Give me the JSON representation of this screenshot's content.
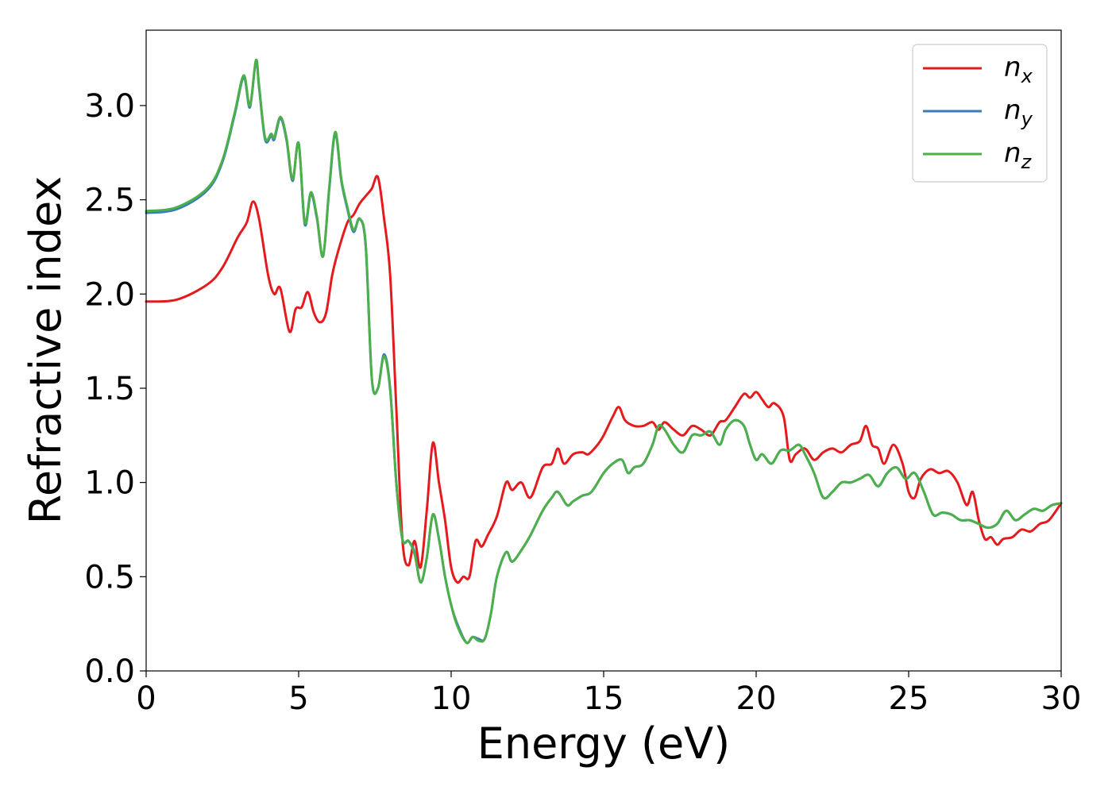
{
  "chart_data": {
    "type": "line",
    "xlabel": "Energy (eV)",
    "ylabel": "Refractive index",
    "xlim": [
      0,
      30
    ],
    "ylim": [
      0,
      3.4
    ],
    "xticks": [
      0,
      5,
      10,
      15,
      20,
      25,
      30
    ],
    "xtick_labels": [
      "0",
      "5",
      "10",
      "15",
      "20",
      "25",
      "30"
    ],
    "yticks": [
      0.0,
      0.5,
      1.0,
      1.5,
      2.0,
      2.5,
      3.0
    ],
    "ytick_labels": [
      "0.0",
      "0.5",
      "1.0",
      "1.5",
      "2.0",
      "2.5",
      "3.0"
    ],
    "grid": false,
    "legend_position": "top-right",
    "series": [
      {
        "name": "n_x",
        "label_base": "n",
        "label_sub": "x",
        "color": "#e41a1c",
        "x": [
          0,
          1,
          2,
          2.5,
          3.0,
          3.3,
          3.5,
          3.7,
          4.0,
          4.2,
          4.4,
          4.7,
          4.9,
          5.1,
          5.3,
          5.5,
          5.7,
          5.9,
          6.1,
          6.3,
          6.6,
          6.8,
          7.0,
          7.2,
          7.4,
          7.6,
          7.8,
          8.0,
          8.2,
          8.4,
          8.6,
          8.8,
          9.0,
          9.2,
          9.4,
          9.6,
          9.8,
          10.0,
          10.2,
          10.4,
          10.6,
          10.8,
          11.0,
          11.2,
          11.5,
          11.8,
          12.0,
          12.3,
          12.6,
          13.0,
          13.3,
          13.5,
          13.7,
          14.0,
          14.3,
          14.5,
          14.8,
          15.0,
          15.3,
          15.5,
          15.7,
          16.0,
          16.3,
          16.6,
          16.8,
          17.0,
          17.3,
          17.6,
          17.9,
          18.2,
          18.5,
          18.8,
          19.0,
          19.3,
          19.6,
          19.8,
          20.0,
          20.2,
          20.4,
          20.6,
          20.9,
          21.1,
          21.3,
          21.6,
          21.9,
          22.2,
          22.5,
          22.8,
          23.1,
          23.4,
          23.6,
          23.8,
          24.0,
          24.2,
          24.5,
          24.8,
          25.0,
          25.2,
          25.4,
          25.7,
          26.0,
          26.3,
          26.6,
          26.9,
          27.1,
          27.3,
          27.5,
          27.7,
          27.9,
          28.1,
          28.4,
          28.7,
          29.0,
          29.3,
          29.6,
          30.0
        ],
        "y": [
          1.96,
          1.97,
          2.05,
          2.14,
          2.3,
          2.38,
          2.49,
          2.4,
          2.1,
          2.0,
          2.03,
          1.8,
          1.92,
          1.93,
          2.01,
          1.9,
          1.85,
          1.9,
          2.1,
          2.23,
          2.38,
          2.42,
          2.48,
          2.52,
          2.56,
          2.62,
          2.4,
          2.1,
          1.4,
          0.7,
          0.56,
          0.69,
          0.55,
          0.85,
          1.21,
          1.0,
          0.8,
          0.55,
          0.47,
          0.5,
          0.5,
          0.69,
          0.66,
          0.72,
          0.82,
          1.0,
          0.96,
          1.0,
          0.92,
          1.08,
          1.1,
          1.18,
          1.1,
          1.15,
          1.16,
          1.15,
          1.2,
          1.25,
          1.35,
          1.4,
          1.33,
          1.3,
          1.3,
          1.32,
          1.28,
          1.32,
          1.28,
          1.25,
          1.3,
          1.28,
          1.25,
          1.32,
          1.33,
          1.4,
          1.47,
          1.45,
          1.48,
          1.44,
          1.4,
          1.42,
          1.35,
          1.12,
          1.15,
          1.18,
          1.12,
          1.16,
          1.18,
          1.16,
          1.2,
          1.22,
          1.3,
          1.2,
          1.18,
          1.1,
          1.2,
          1.1,
          0.95,
          0.92,
          1.02,
          1.07,
          1.05,
          1.06,
          1.0,
          0.88,
          0.95,
          0.8,
          0.7,
          0.71,
          0.67,
          0.7,
          0.71,
          0.75,
          0.74,
          0.78,
          0.8,
          0.89
        ]
      },
      {
        "name": "n_y",
        "label_base": "n",
        "label_sub": "y",
        "color": "#377eb8",
        "x": [
          0,
          1,
          2,
          2.5,
          2.9,
          3.2,
          3.4,
          3.6,
          3.7,
          3.9,
          4.1,
          4.2,
          4.4,
          4.6,
          4.8,
          5.0,
          5.2,
          5.4,
          5.6,
          5.8,
          6.0,
          6.2,
          6.4,
          6.6,
          6.8,
          7.0,
          7.2,
          7.4,
          7.6,
          7.8,
          8.0,
          8.2,
          8.4,
          8.6,
          8.8,
          9.0,
          9.2,
          9.4,
          9.6,
          9.8,
          10.0,
          10.2,
          10.5,
          10.7,
          10.9,
          11.1,
          11.3,
          11.5,
          11.8,
          12.0,
          12.3,
          12.6,
          13.0,
          13.3,
          13.5,
          13.8,
          14.0,
          14.3,
          14.6,
          15.0,
          15.3,
          15.6,
          15.8,
          16.0,
          16.3,
          16.6,
          16.8,
          17.0,
          17.3,
          17.6,
          17.9,
          18.2,
          18.5,
          18.8,
          19.0,
          19.3,
          19.6,
          19.8,
          20.0,
          20.2,
          20.5,
          20.8,
          21.1,
          21.4,
          21.6,
          21.9,
          22.2,
          22.5,
          22.8,
          23.1,
          23.4,
          23.7,
          24.0,
          24.3,
          24.6,
          24.9,
          25.2,
          25.5,
          25.8,
          26.1,
          26.4,
          26.7,
          27.0,
          27.3,
          27.6,
          27.9,
          28.2,
          28.5,
          28.8,
          29.1,
          29.4,
          29.7,
          30.0
        ],
        "y": [
          2.43,
          2.45,
          2.55,
          2.7,
          2.95,
          3.15,
          2.99,
          3.24,
          3.1,
          2.82,
          2.84,
          2.82,
          2.93,
          2.82,
          2.6,
          2.8,
          2.37,
          2.53,
          2.4,
          2.2,
          2.55,
          2.85,
          2.6,
          2.45,
          2.33,
          2.4,
          2.25,
          1.55,
          1.5,
          1.68,
          1.5,
          1.0,
          0.7,
          0.69,
          0.63,
          0.47,
          0.6,
          0.83,
          0.7,
          0.5,
          0.35,
          0.25,
          0.15,
          0.18,
          0.17,
          0.17,
          0.3,
          0.5,
          0.63,
          0.58,
          0.64,
          0.72,
          0.85,
          0.92,
          0.95,
          0.88,
          0.9,
          0.93,
          0.95,
          1.05,
          1.1,
          1.12,
          1.05,
          1.08,
          1.1,
          1.2,
          1.3,
          1.28,
          1.2,
          1.16,
          1.25,
          1.25,
          1.27,
          1.2,
          1.28,
          1.33,
          1.3,
          1.2,
          1.12,
          1.15,
          1.1,
          1.17,
          1.17,
          1.2,
          1.15,
          1.05,
          0.92,
          0.95,
          1.0,
          1.0,
          1.02,
          1.04,
          0.98,
          1.05,
          1.08,
          1.02,
          1.05,
          0.95,
          0.83,
          0.84,
          0.83,
          0.8,
          0.8,
          0.78,
          0.76,
          0.78,
          0.85,
          0.8,
          0.83,
          0.86,
          0.85,
          0.88,
          0.89
        ]
      },
      {
        "name": "n_z",
        "label_base": "n",
        "label_sub": "z",
        "color": "#4daf4a",
        "x": [
          0,
          1,
          2,
          2.5,
          2.9,
          3.2,
          3.4,
          3.6,
          3.7,
          3.9,
          4.1,
          4.2,
          4.4,
          4.6,
          4.8,
          5.0,
          5.2,
          5.4,
          5.6,
          5.8,
          6.0,
          6.2,
          6.4,
          6.6,
          6.8,
          7.0,
          7.2,
          7.4,
          7.6,
          7.8,
          8.0,
          8.2,
          8.4,
          8.6,
          8.8,
          9.0,
          9.2,
          9.4,
          9.6,
          9.8,
          10.0,
          10.2,
          10.5,
          10.7,
          10.9,
          11.1,
          11.3,
          11.5,
          11.8,
          12.0,
          12.3,
          12.6,
          13.0,
          13.3,
          13.5,
          13.8,
          14.0,
          14.3,
          14.6,
          15.0,
          15.3,
          15.6,
          15.8,
          16.0,
          16.3,
          16.6,
          16.8,
          17.0,
          17.3,
          17.6,
          17.9,
          18.2,
          18.5,
          18.8,
          19.0,
          19.3,
          19.6,
          19.8,
          20.0,
          20.2,
          20.5,
          20.8,
          21.1,
          21.4,
          21.6,
          21.9,
          22.2,
          22.5,
          22.8,
          23.1,
          23.4,
          23.7,
          24.0,
          24.3,
          24.6,
          24.9,
          25.2,
          25.5,
          25.8,
          26.1,
          26.4,
          26.7,
          27.0,
          27.3,
          27.6,
          27.9,
          28.2,
          28.5,
          28.8,
          29.1,
          29.4,
          29.7,
          30.0
        ],
        "y": [
          2.44,
          2.46,
          2.56,
          2.71,
          2.96,
          3.16,
          3.0,
          3.24,
          3.11,
          2.83,
          2.85,
          2.83,
          2.94,
          2.83,
          2.61,
          2.8,
          2.38,
          2.54,
          2.41,
          2.2,
          2.56,
          2.86,
          2.61,
          2.46,
          2.34,
          2.4,
          2.26,
          1.55,
          1.5,
          1.67,
          1.49,
          1.0,
          0.7,
          0.69,
          0.62,
          0.47,
          0.6,
          0.83,
          0.7,
          0.5,
          0.35,
          0.24,
          0.15,
          0.18,
          0.16,
          0.17,
          0.3,
          0.5,
          0.63,
          0.58,
          0.64,
          0.72,
          0.85,
          0.92,
          0.95,
          0.88,
          0.9,
          0.93,
          0.95,
          1.05,
          1.1,
          1.12,
          1.05,
          1.08,
          1.1,
          1.2,
          1.3,
          1.28,
          1.2,
          1.16,
          1.25,
          1.25,
          1.27,
          1.2,
          1.28,
          1.33,
          1.3,
          1.2,
          1.12,
          1.15,
          1.1,
          1.17,
          1.17,
          1.2,
          1.15,
          1.05,
          0.92,
          0.95,
          1.0,
          1.0,
          1.02,
          1.04,
          0.98,
          1.05,
          1.08,
          1.02,
          1.05,
          0.95,
          0.83,
          0.84,
          0.83,
          0.8,
          0.8,
          0.78,
          0.76,
          0.78,
          0.85,
          0.8,
          0.83,
          0.86,
          0.85,
          0.88,
          0.89
        ]
      }
    ]
  }
}
